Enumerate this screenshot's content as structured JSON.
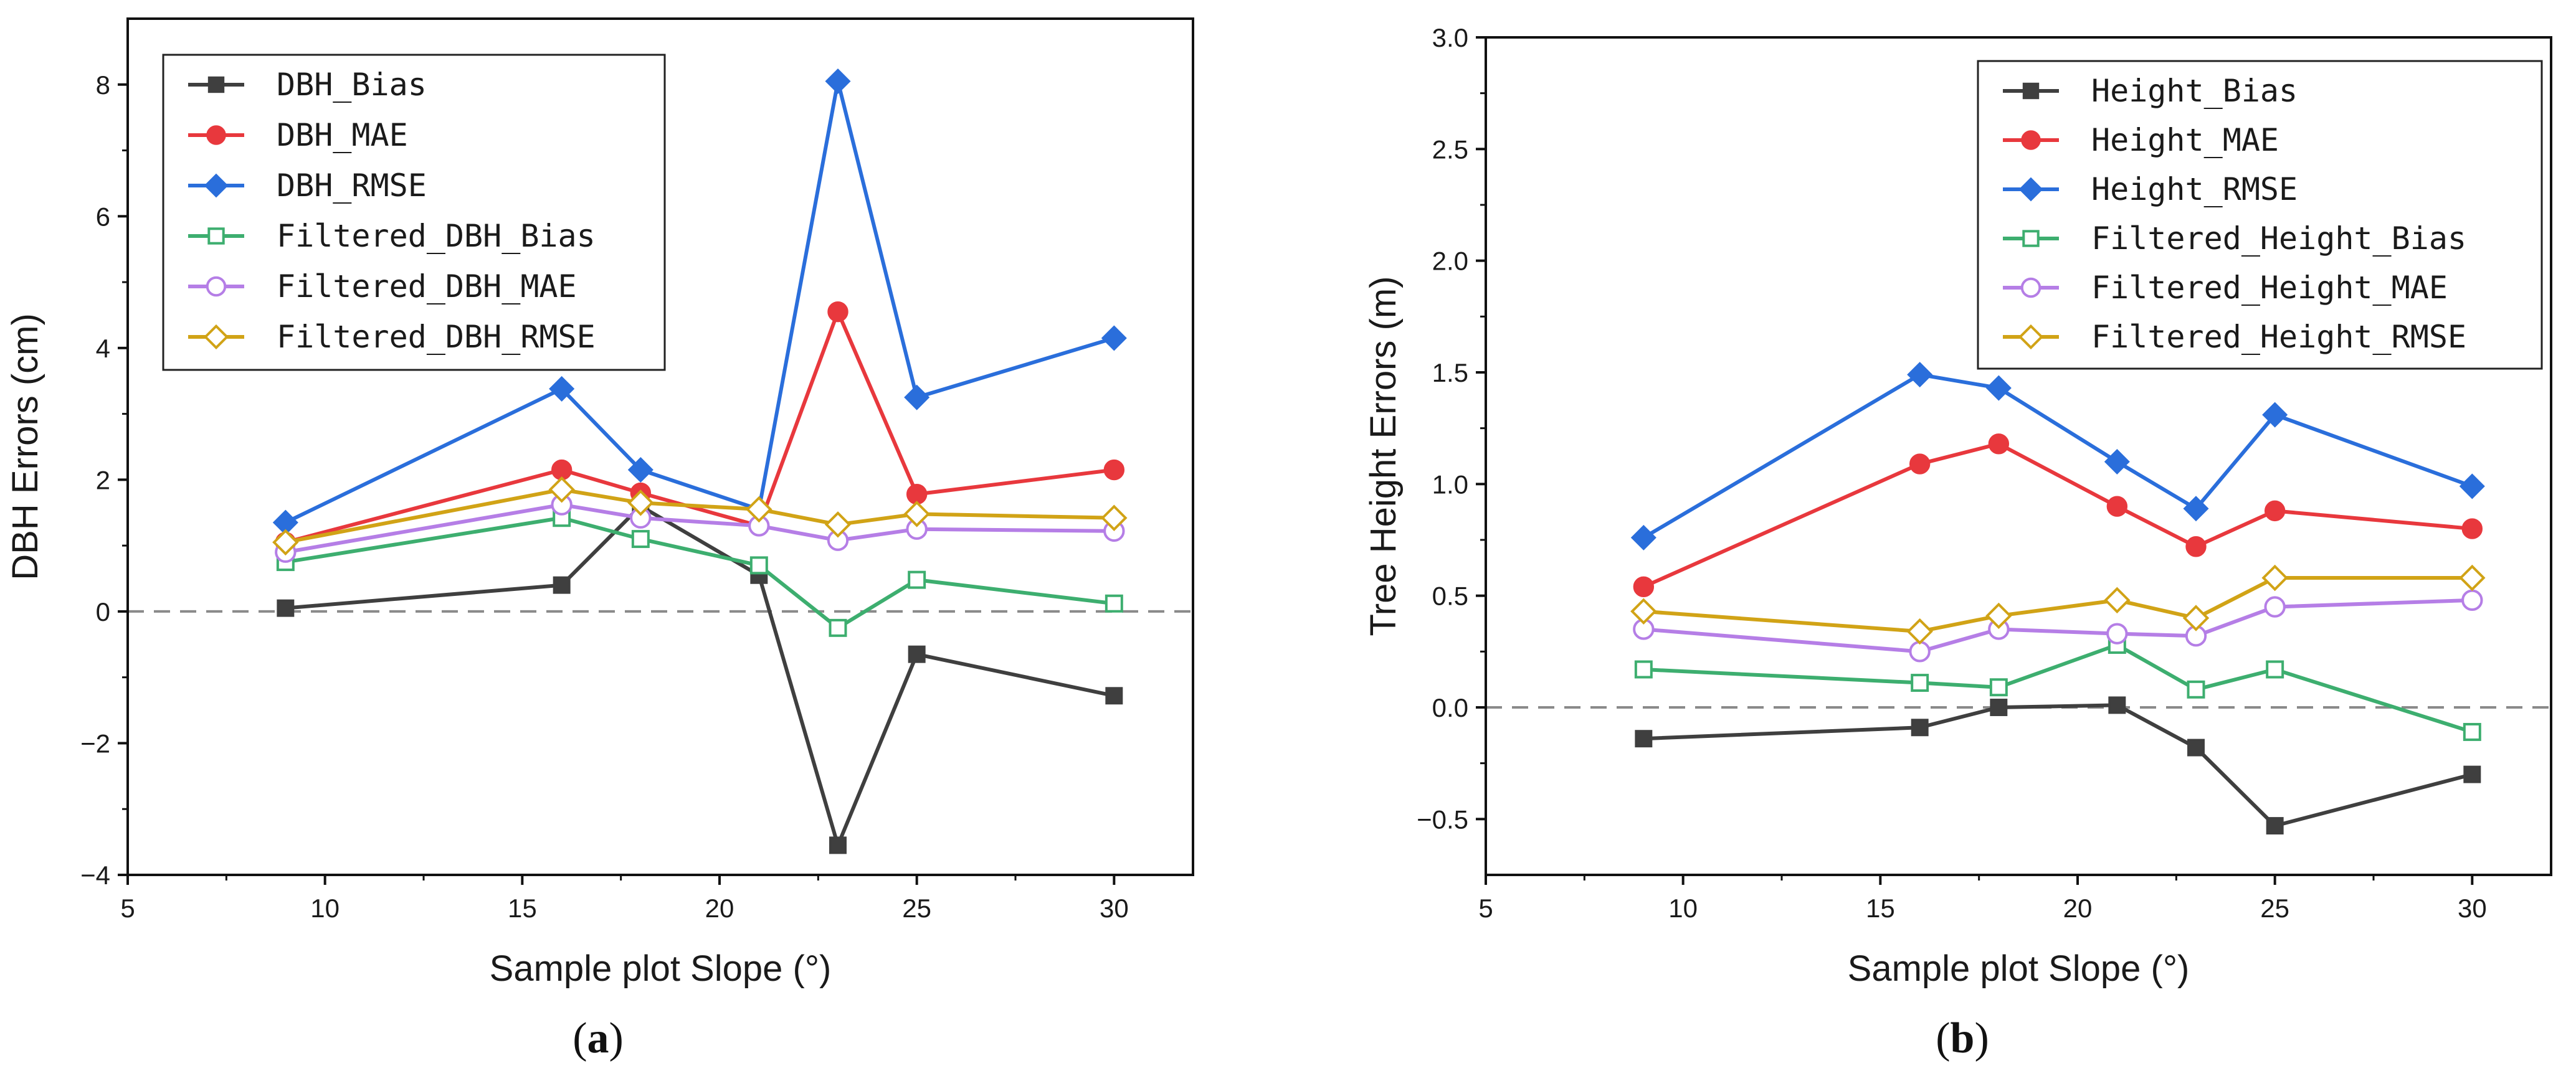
{
  "chart_data": [
    {
      "type": "line",
      "caption": "a",
      "xlabel": "Sample plot Slope (°)",
      "ylabel": "DBH Errors (cm)",
      "xlim": [
        5,
        32
      ],
      "ylim": [
        -4,
        9
      ],
      "xticks": [
        5,
        10,
        15,
        20,
        25,
        30
      ],
      "yticks": [
        -4,
        -2,
        0,
        2,
        4,
        6,
        8
      ],
      "ytick_labels": [
        "−4",
        "−2",
        "0",
        "2",
        "4",
        "6",
        "8"
      ],
      "reference_line": 0,
      "x": [
        9,
        16,
        18,
        21,
        23,
        25,
        30
      ],
      "legend_position": "top-left",
      "series": [
        {
          "name": "DBH_Bias",
          "color": "#3f3f3f",
          "marker": "square",
          "filled": true,
          "values": [
            0.05,
            0.4,
            1.6,
            0.55,
            -3.55,
            -0.65,
            -1.28
          ]
        },
        {
          "name": "DBH_MAE",
          "color": "#e8383d",
          "marker": "circle",
          "filled": true,
          "values": [
            1.05,
            2.15,
            1.8,
            1.3,
            4.55,
            1.78,
            2.15
          ]
        },
        {
          "name": "DBH_RMSE",
          "color": "#2a6edb",
          "marker": "diamond",
          "filled": true,
          "values": [
            1.35,
            3.38,
            2.15,
            1.55,
            8.05,
            3.25,
            4.15
          ]
        },
        {
          "name": "Filtered_DBH_Bias",
          "color": "#3dae6f",
          "marker": "square",
          "filled": false,
          "values": [
            0.75,
            1.42,
            1.1,
            0.7,
            -0.25,
            0.48,
            0.12
          ]
        },
        {
          "name": "Filtered_DBH_MAE",
          "color": "#b57ee6",
          "marker": "circle",
          "filled": false,
          "values": [
            0.9,
            1.62,
            1.42,
            1.3,
            1.08,
            1.25,
            1.22
          ]
        },
        {
          "name": "Filtered_DBH_RMSE",
          "color": "#d1a316",
          "marker": "diamond",
          "filled": false,
          "values": [
            1.05,
            1.85,
            1.65,
            1.55,
            1.32,
            1.48,
            1.42
          ]
        }
      ]
    },
    {
      "type": "line",
      "caption": "b",
      "xlabel": "Sample plot Slope (°)",
      "ylabel": "Tree Height Errors (m)",
      "xlim": [
        5,
        32
      ],
      "ylim": [
        -0.75,
        3.0
      ],
      "xticks": [
        5,
        10,
        15,
        20,
        25,
        30
      ],
      "yticks": [
        -0.5,
        0,
        0.5,
        1.0,
        1.5,
        2.0,
        2.5,
        3.0
      ],
      "ytick_labels": [
        "−0.5",
        "0.0",
        "0.5",
        "1.0",
        "1.5",
        "2.0",
        "2.5",
        "3.0"
      ],
      "reference_line": 0,
      "x": [
        9,
        16,
        18,
        21,
        23,
        25,
        30
      ],
      "legend_position": "top-right",
      "series": [
        {
          "name": "Height_Bias",
          "color": "#3f3f3f",
          "marker": "square",
          "filled": true,
          "values": [
            -0.14,
            -0.09,
            0.0,
            0.01,
            -0.18,
            -0.53,
            -0.3
          ]
        },
        {
          "name": "Height_MAE",
          "color": "#e8383d",
          "marker": "circle",
          "filled": true,
          "values": [
            0.54,
            1.09,
            1.18,
            0.9,
            0.72,
            0.88,
            0.8
          ]
        },
        {
          "name": "Height_RMSE",
          "color": "#2a6edb",
          "marker": "diamond",
          "filled": true,
          "values": [
            0.76,
            1.49,
            1.43,
            1.1,
            0.89,
            1.31,
            0.99
          ]
        },
        {
          "name": "Filtered_Height_Bias",
          "color": "#3dae6f",
          "marker": "square",
          "filled": false,
          "values": [
            0.17,
            0.11,
            0.09,
            0.28,
            0.08,
            0.17,
            -0.11
          ]
        },
        {
          "name": "Filtered_Height_MAE",
          "color": "#b57ee6",
          "marker": "circle",
          "filled": false,
          "values": [
            0.35,
            0.25,
            0.35,
            0.33,
            0.32,
            0.45,
            0.48
          ]
        },
        {
          "name": "Filtered_Height_RMSE",
          "color": "#d1a316",
          "marker": "diamond",
          "filled": false,
          "values": [
            0.43,
            0.34,
            0.41,
            0.48,
            0.4,
            0.58,
            0.58
          ]
        }
      ]
    }
  ]
}
